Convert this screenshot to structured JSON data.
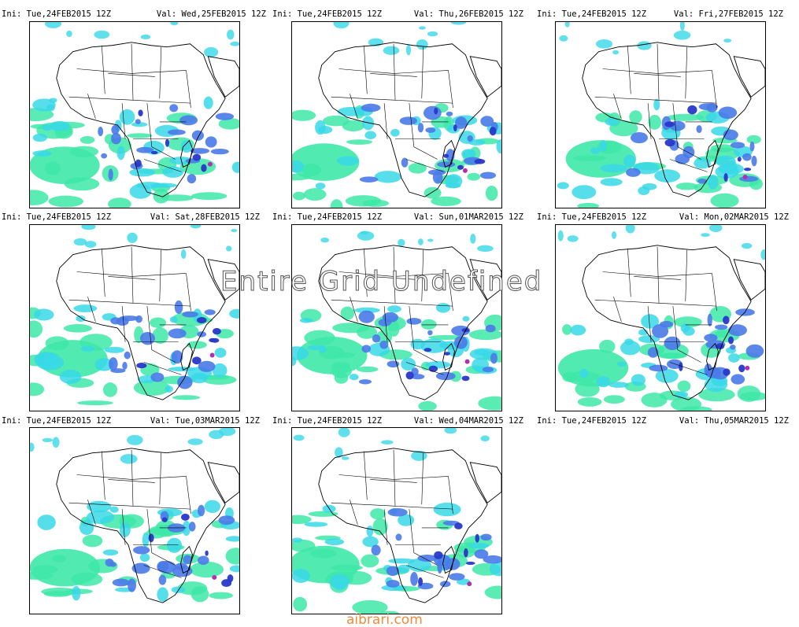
{
  "panels": [
    {
      "ini": "Ini: Tue,24FEB2015 12Z",
      "val": "Val: Wed,25FEB2015 12Z",
      "has_map": true
    },
    {
      "ini": "Ini: Tue,24FEB2015 12Z",
      "val": "Val: Thu,26FEB2015 12Z",
      "has_map": true
    },
    {
      "ini": "Ini: Tue,24FEB2015 12Z",
      "val": "Val: Fri,27FEB2015 12Z",
      "has_map": true
    },
    {
      "ini": "Ini: Tue,24FEB2015 12Z",
      "val": "Val: Sat,28FEB2015 12Z",
      "has_map": true
    },
    {
      "ini": "Ini: Tue,24FEB2015 12Z",
      "val": "Val: Sun,01MAR2015 12Z",
      "has_map": true
    },
    {
      "ini": "Ini: Tue,24FEB2015 12Z",
      "val": "Val: Mon,02MAR2015 12Z",
      "has_map": true
    },
    {
      "ini": "Ini: Tue,24FEB2015 12Z",
      "val": "Val: Thu,05MAR2015 12Z",
      "has_map": false
    },
    {
      "ini": "Ini: Tue,24FEB2015 12Z",
      "val": "Val: Tue,03MAR2015 12Z",
      "has_map": true
    },
    {
      "ini": "Ini: Tue,24FEB2015 12Z",
      "val": "Val: Wed,04MAR2015 12Z",
      "has_map": true
    }
  ],
  "undefined_notice": "Entire Grid Undefined",
  "watermark": "aibrari.com",
  "colors": {
    "light_green": "#3ee8a8",
    "cyan": "#38d8e8",
    "blue": "#4a7ae8",
    "dark_blue": "#2838c8",
    "magenta": "#b030b0",
    "coastline": "#000000"
  }
}
